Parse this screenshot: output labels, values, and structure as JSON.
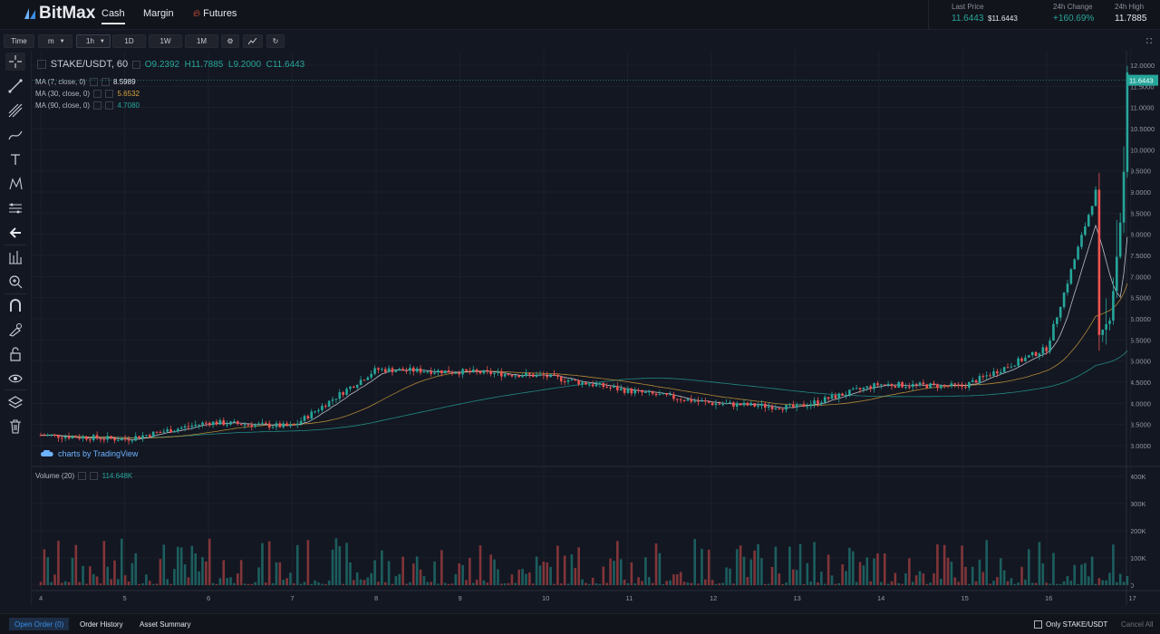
{
  "header": {
    "brand": "BitMax",
    "nav": [
      {
        "label": "Cash",
        "active": true
      },
      {
        "label": "Margin",
        "active": false
      },
      {
        "label": "Futures",
        "active": false,
        "icon": "fire-icon"
      }
    ],
    "stats": {
      "last_price_label": "Last Price",
      "last_price": "11.6443",
      "last_price_usd": "$11.6443",
      "change_label": "24h Change",
      "change": "+160.69%",
      "high_label": "24h High",
      "high": "11.7885"
    }
  },
  "toolbar": {
    "time_label": "Time",
    "minute_label": "m",
    "interval_label": "1h",
    "d1_label": "1D",
    "w1_label": "1W",
    "mo1_label": "1M",
    "icons": [
      "gear-icon",
      "chart-type-icon",
      "replay-icon",
      "fullscreen-icon"
    ]
  },
  "left_tools": [
    "crosshair-icon",
    "trend-line-icon",
    "pitchfork-icon",
    "brush-icon",
    "text-icon",
    "pattern-icon",
    "measure-icon",
    "back-arrow-icon",
    "ruler-icon",
    "zoom-icon",
    "magnet-icon",
    "lock-drawing-icon",
    "unlock-icon",
    "eye-icon",
    "layers-icon",
    "trash-icon"
  ],
  "chart": {
    "symbol": "STAKE/USDT, 60",
    "o_label": "O",
    "o": "9.2392",
    "h_label": "H",
    "h": "11.7885",
    "l_label": "L",
    "l": "9.2000",
    "c_label": "C",
    "c": "11.6443",
    "ma7_label": "MA (7, close, 0)",
    "ma7": "8.5989",
    "ma30_label": "MA (30, close, 0)",
    "ma30": "5.6532",
    "ma90_label": "MA (90, close, 0)",
    "ma90": "4.7080",
    "volume_label": "Volume (20)",
    "volume": "114.648K",
    "price_tag": "11.6443",
    "tradingview": "charts by TradingView",
    "colors": {
      "up": "#26a69a",
      "down": "#ef5350",
      "ma7": "#e6e8ee",
      "ma30": "#d9a43a",
      "ma90": "#26a69a"
    }
  },
  "chart_data": {
    "type": "candlestick",
    "price_axis": [
      "12.0000",
      "11.5000",
      "11.0000",
      "10.5000",
      "10.0000",
      "9.5000",
      "9.0000",
      "8.5000",
      "8.0000",
      "7.5000",
      "7.0000",
      "6.5000",
      "6.0000",
      "5.5000",
      "5.0000",
      "4.5000",
      "4.0000",
      "3.5000",
      "3.0000"
    ],
    "volume_axis": [
      "400K",
      "300K",
      "200K",
      "100K",
      "0"
    ],
    "date_axis": [
      "4",
      "5",
      "6",
      "7",
      "8",
      "9",
      "10",
      "11",
      "12",
      "13",
      "14",
      "15",
      "16",
      "17"
    ],
    "close_trend": [
      {
        "date": "4",
        "close": 3.25
      },
      {
        "date": "5",
        "close": 3.15
      },
      {
        "date": "6",
        "close": 3.55
      },
      {
        "date": "7",
        "close": 3.45
      },
      {
        "date": "8",
        "close": 4.8
      },
      {
        "date": "9",
        "close": 4.75
      },
      {
        "date": "10",
        "close": 4.65
      },
      {
        "date": "11",
        "close": 4.3
      },
      {
        "date": "12",
        "close": 4.0
      },
      {
        "date": "13",
        "close": 3.9
      },
      {
        "date": "14",
        "close": 4.45
      },
      {
        "date": "15",
        "close": 4.4
      },
      {
        "date": "16",
        "close": 5.3
      },
      {
        "date": "17",
        "close": 11.6443
      }
    ]
  },
  "bottom": {
    "open_order": "Open Order (0)",
    "order_history": "Order History",
    "asset_summary": "Asset Summary",
    "only_pair": "Only STAKE/USDT",
    "cancel_all": "Cancel All"
  }
}
